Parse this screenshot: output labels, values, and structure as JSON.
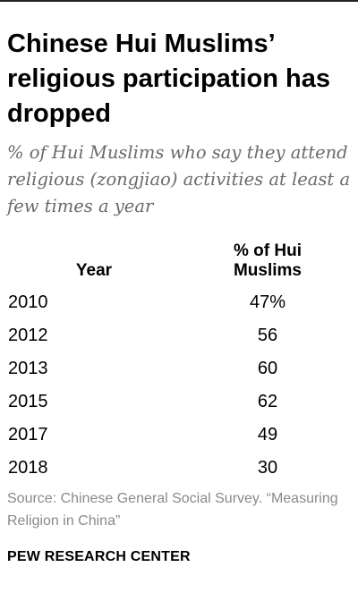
{
  "title": "Chinese Hui Muslims’ religious participation has dropped",
  "subtitle": "% of Hui Muslims who say they attend religious (zongjiao) activities at least a few times a year",
  "columns": {
    "year": "Year",
    "percent": "% of Hui Muslims"
  },
  "chart_data": {
    "type": "table",
    "title": "Chinese Hui Muslims’ religious participation has dropped",
    "subtitle": "% of Hui Muslims who say they attend religious (zongjiao) activities at least a few times a year",
    "columns": [
      "Year",
      "% of Hui Muslims"
    ],
    "rows": [
      {
        "year": "2010",
        "value": 47,
        "label": "47%"
      },
      {
        "year": "2012",
        "value": 56,
        "label": "56"
      },
      {
        "year": "2013",
        "value": 60,
        "label": "60"
      },
      {
        "year": "2015",
        "value": 62,
        "label": "62"
      },
      {
        "year": "2017",
        "value": 49,
        "label": "49"
      },
      {
        "year": "2018",
        "value": 30,
        "label": "30"
      }
    ]
  },
  "source": "Source: Chinese General Social Survey. “Measuring Religion in China”",
  "footer": {
    "logo": "PEW RESEARCH CENTER"
  }
}
